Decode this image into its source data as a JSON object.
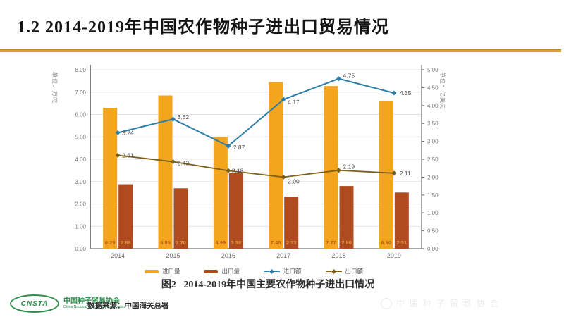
{
  "slide": {
    "title": "1.2 2014-2019年中国农作物种子进出口贸易情况",
    "accent_color": "#dfa128"
  },
  "chart_data": {
    "type": "bar+line combo",
    "categories": [
      "2014",
      "2015",
      "2016",
      "2017",
      "2018",
      "2019"
    ],
    "series": [
      {
        "name": "进口量",
        "type": "bar",
        "axis": "left",
        "color": "#f2a51d",
        "label_color": "#bd5a17",
        "values": [
          6.29,
          6.85,
          4.99,
          7.45,
          7.27,
          6.6
        ]
      },
      {
        "name": "出口量",
        "type": "bar",
        "axis": "left",
        "color": "#b04b20",
        "label_color": "#e09a3f",
        "values": [
          2.88,
          2.7,
          3.38,
          2.33,
          2.8,
          2.51
        ]
      },
      {
        "name": "进口额",
        "type": "line",
        "axis": "right",
        "color": "#2f7fa8",
        "values": [
          3.24,
          3.62,
          2.87,
          4.17,
          4.75,
          4.35
        ],
        "label_offsets": [
          [
            6,
            3
          ],
          [
            6,
            0
          ],
          [
            7,
            5
          ],
          [
            6,
            7
          ],
          [
            6,
            -1
          ],
          [
            8,
            3
          ]
        ]
      },
      {
        "name": "出口额",
        "type": "line",
        "axis": "right",
        "color": "#7e5f17",
        "values": [
          2.61,
          2.43,
          2.18,
          2.0,
          2.19,
          2.11
        ],
        "label_offsets": [
          [
            6,
            3
          ],
          [
            6,
            5
          ],
          [
            5,
            3
          ],
          [
            6,
            9
          ],
          [
            6,
            -2
          ],
          [
            8,
            3
          ]
        ]
      }
    ],
    "left_axis": {
      "label": "单位：万吨",
      "min": 0,
      "max": 8,
      "step": 1,
      "decimals": 2
    },
    "right_axis": {
      "label": "单位：亿美元",
      "min": 0,
      "max": 5,
      "step": 0.5,
      "decimals": 2
    },
    "grid": "horizontal",
    "legend_position": "bottom",
    "caption": "图2   2014-2019年中国主要农作物种子进出口情况"
  },
  "footer": {
    "logo_text": "CNSTA",
    "org_name": "中国种子贸易协会",
    "org_name_en": "China National Seed Trade Association",
    "source": "数据来源：中国海关总署",
    "watermark": "中国种子贸易协会"
  }
}
